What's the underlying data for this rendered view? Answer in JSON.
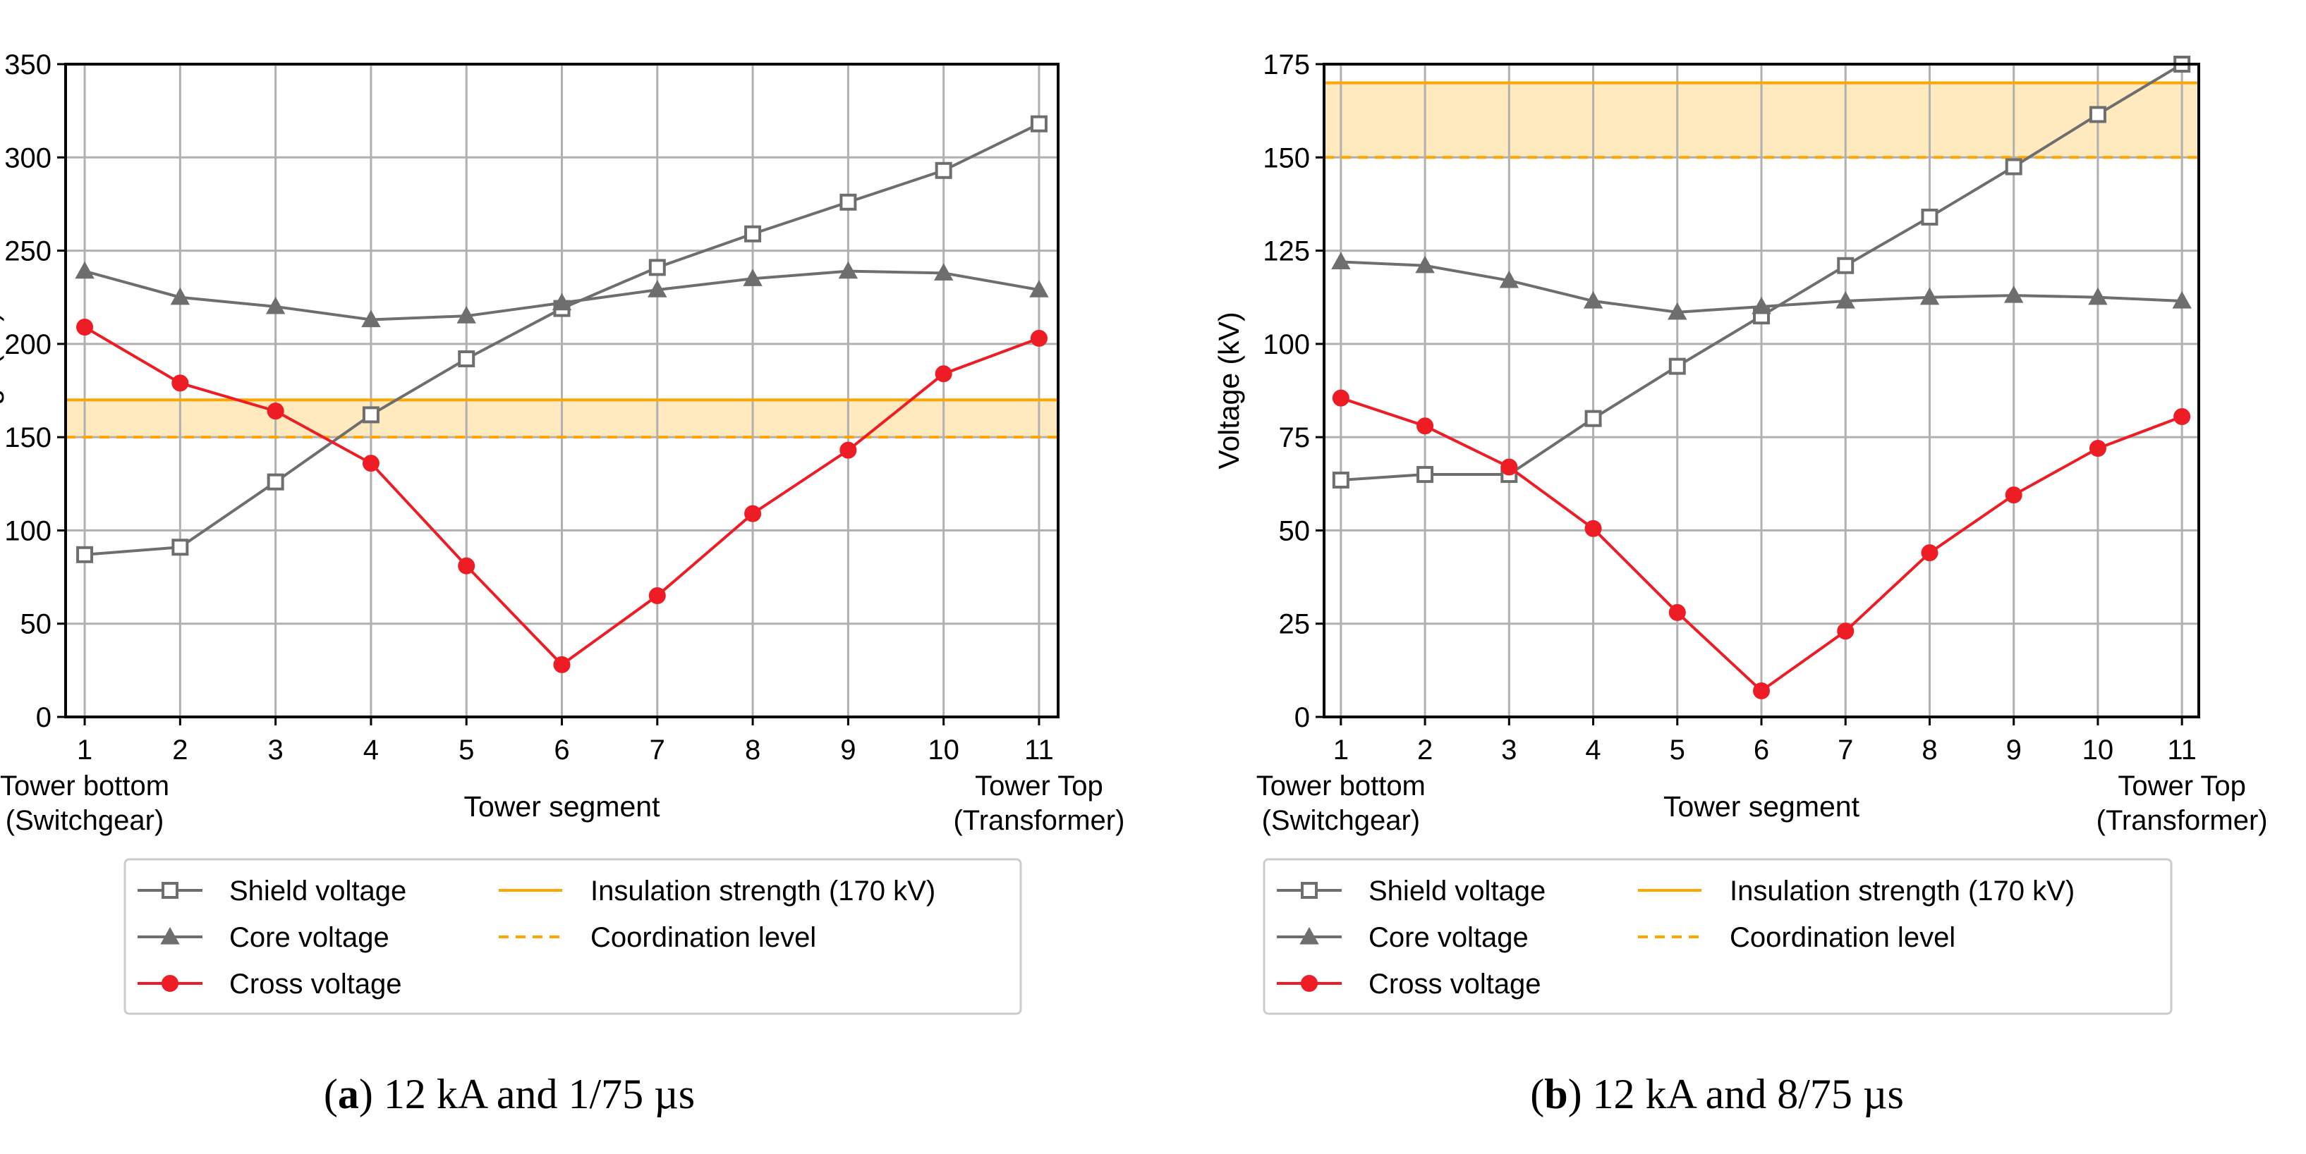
{
  "chart_data": [
    {
      "type": "line",
      "caption_letter": "a",
      "caption_text": "12 kA and 1/75 µs",
      "xlabel": "Tower segment",
      "ylabel": "Voltage (kV)",
      "x": [
        1,
        2,
        3,
        4,
        5,
        6,
        7,
        8,
        9,
        10,
        11
      ],
      "xlim": [
        0.8,
        11.2
      ],
      "ylim": [
        0,
        350
      ],
      "yticks": [
        0,
        50,
        100,
        150,
        200,
        250,
        300,
        350
      ],
      "x_end_labels": {
        "left": [
          "Tower bottom",
          "(Switchgear)"
        ],
        "right": [
          "Tower Top",
          "(Transformer)"
        ]
      },
      "grid": true,
      "band": [
        150,
        170
      ],
      "series": [
        {
          "name": "Shield voltage",
          "marker": "square",
          "color": "#6e6e6e",
          "values": [
            87,
            91,
            126,
            162,
            192,
            219,
            241,
            259,
            276,
            293,
            318
          ]
        },
        {
          "name": "Core voltage",
          "marker": "triangle",
          "color": "#6e6e6e",
          "values": [
            239,
            225,
            220,
            213,
            215,
            222,
            229,
            235,
            239,
            238,
            229
          ]
        },
        {
          "name": "Cross voltage",
          "marker": "circle",
          "color": "#ee1c25",
          "values": [
            209,
            179,
            164,
            136,
            81,
            28,
            65,
            109,
            143,
            184,
            203
          ]
        }
      ],
      "hlines": [
        {
          "name": "Insulation strength (170 kV)",
          "value": 170,
          "style": "solid",
          "color": "#ffa500"
        },
        {
          "name": "Coordination level",
          "value": 150,
          "style": "dashed",
          "color": "#ffa500"
        }
      ]
    },
    {
      "type": "line",
      "caption_letter": "b",
      "caption_text": "12 kA and 8/75 µs",
      "xlabel": "Tower segment",
      "ylabel": "Voltage (kV)",
      "x": [
        1,
        2,
        3,
        4,
        5,
        6,
        7,
        8,
        9,
        10,
        11
      ],
      "xlim": [
        0.8,
        11.2
      ],
      "ylim": [
        0,
        175
      ],
      "yticks": [
        0,
        25,
        50,
        75,
        100,
        125,
        150,
        175
      ],
      "x_end_labels": {
        "left": [
          "Tower bottom",
          "(Switchgear)"
        ],
        "right": [
          "Tower Top",
          "(Transformer)"
        ]
      },
      "grid": true,
      "band": [
        150,
        170
      ],
      "series": [
        {
          "name": "Shield voltage",
          "marker": "square",
          "color": "#6e6e6e",
          "values": [
            63.5,
            65,
            65,
            80,
            94,
            107.5,
            121,
            134,
            147.5,
            161.5,
            175
          ]
        },
        {
          "name": "Core voltage",
          "marker": "triangle",
          "color": "#6e6e6e",
          "values": [
            122,
            121,
            117,
            111.5,
            108.5,
            110,
            111.5,
            112.5,
            113,
            112.5,
            111.5
          ]
        },
        {
          "name": "Cross voltage",
          "marker": "circle",
          "color": "#ee1c25",
          "values": [
            85.5,
            78,
            67,
            50.5,
            28,
            7,
            23,
            44,
            59.5,
            72,
            80.5
          ]
        }
      ],
      "hlines": [
        {
          "name": "Insulation strength (170 kV)",
          "value": 170,
          "style": "solid",
          "color": "#ffa500"
        },
        {
          "name": "Coordination level",
          "value": 150,
          "style": "dashed",
          "color": "#ffa500"
        }
      ]
    }
  ]
}
